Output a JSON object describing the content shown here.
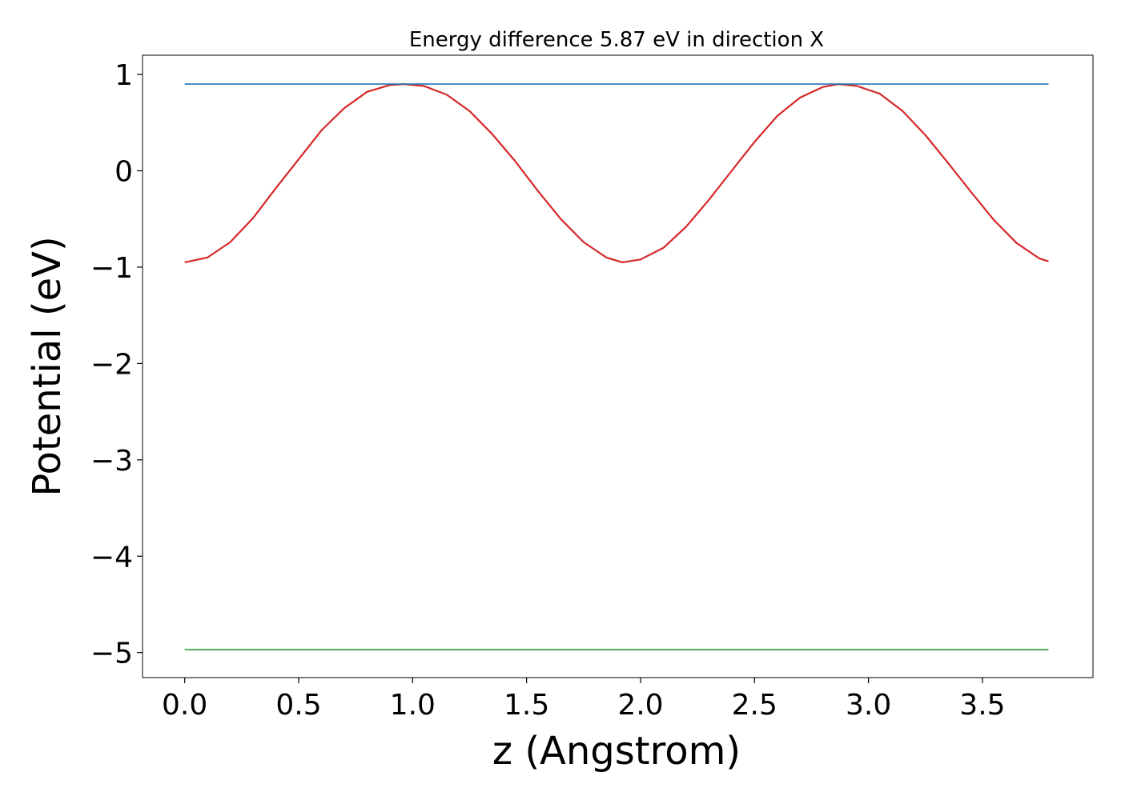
{
  "chart_data": {
    "type": "line",
    "title": "Energy difference 5.87 eV in direction X",
    "xlabel": "z (Angstrom)",
    "ylabel": "Potential (eV)",
    "xlim": [
      -0.185,
      3.985
    ],
    "ylim": [
      -5.26,
      1.2
    ],
    "xticks": [
      0.0,
      0.5,
      1.0,
      1.5,
      2.0,
      2.5,
      3.0,
      3.5
    ],
    "xtick_labels": [
      "0.0",
      "0.5",
      "1.0",
      "1.5",
      "2.0",
      "2.5",
      "3.0",
      "3.5"
    ],
    "yticks": [
      1,
      0,
      -1,
      -2,
      -3,
      -4,
      -5
    ],
    "ytick_labels": [
      "1",
      "0",
      "−1",
      "−2",
      "−3",
      "−4",
      "−5"
    ],
    "grid": false,
    "legend": false,
    "series": [
      {
        "color": "#d62728",
        "points": [
          [
            0.0,
            -0.95
          ],
          [
            0.1,
            -0.9
          ],
          [
            0.2,
            -0.74
          ],
          [
            0.3,
            -0.49
          ],
          [
            0.4,
            -0.18
          ],
          [
            0.5,
            0.12
          ],
          [
            0.6,
            0.42
          ],
          [
            0.7,
            0.65
          ],
          [
            0.8,
            0.82
          ],
          [
            0.9,
            0.89
          ],
          [
            0.96,
            0.9
          ],
          [
            1.05,
            0.88
          ],
          [
            1.15,
            0.79
          ],
          [
            1.25,
            0.62
          ],
          [
            1.35,
            0.38
          ],
          [
            1.45,
            0.1
          ],
          [
            1.55,
            -0.21
          ],
          [
            1.65,
            -0.5
          ],
          [
            1.75,
            -0.74
          ],
          [
            1.85,
            -0.9
          ],
          [
            1.92,
            -0.95
          ],
          [
            2.0,
            -0.92
          ],
          [
            2.1,
            -0.8
          ],
          [
            2.2,
            -0.58
          ],
          [
            2.3,
            -0.3
          ],
          [
            2.4,
            0.0
          ],
          [
            2.5,
            0.3
          ],
          [
            2.6,
            0.57
          ],
          [
            2.7,
            0.76
          ],
          [
            2.8,
            0.87
          ],
          [
            2.87,
            0.9
          ],
          [
            2.95,
            0.88
          ],
          [
            3.05,
            0.8
          ],
          [
            3.15,
            0.62
          ],
          [
            3.25,
            0.37
          ],
          [
            3.35,
            0.08
          ],
          [
            3.45,
            -0.22
          ],
          [
            3.55,
            -0.51
          ],
          [
            3.65,
            -0.75
          ],
          [
            3.75,
            -0.91
          ],
          [
            3.79,
            -0.94
          ]
        ]
      },
      {
        "color": "#1f77b4",
        "points": [
          [
            0.0,
            0.9
          ],
          [
            3.79,
            0.9
          ]
        ]
      },
      {
        "color": "#2ca02c",
        "points": [
          [
            0.0,
            -4.97
          ],
          [
            3.79,
            -4.97
          ]
        ]
      }
    ]
  }
}
